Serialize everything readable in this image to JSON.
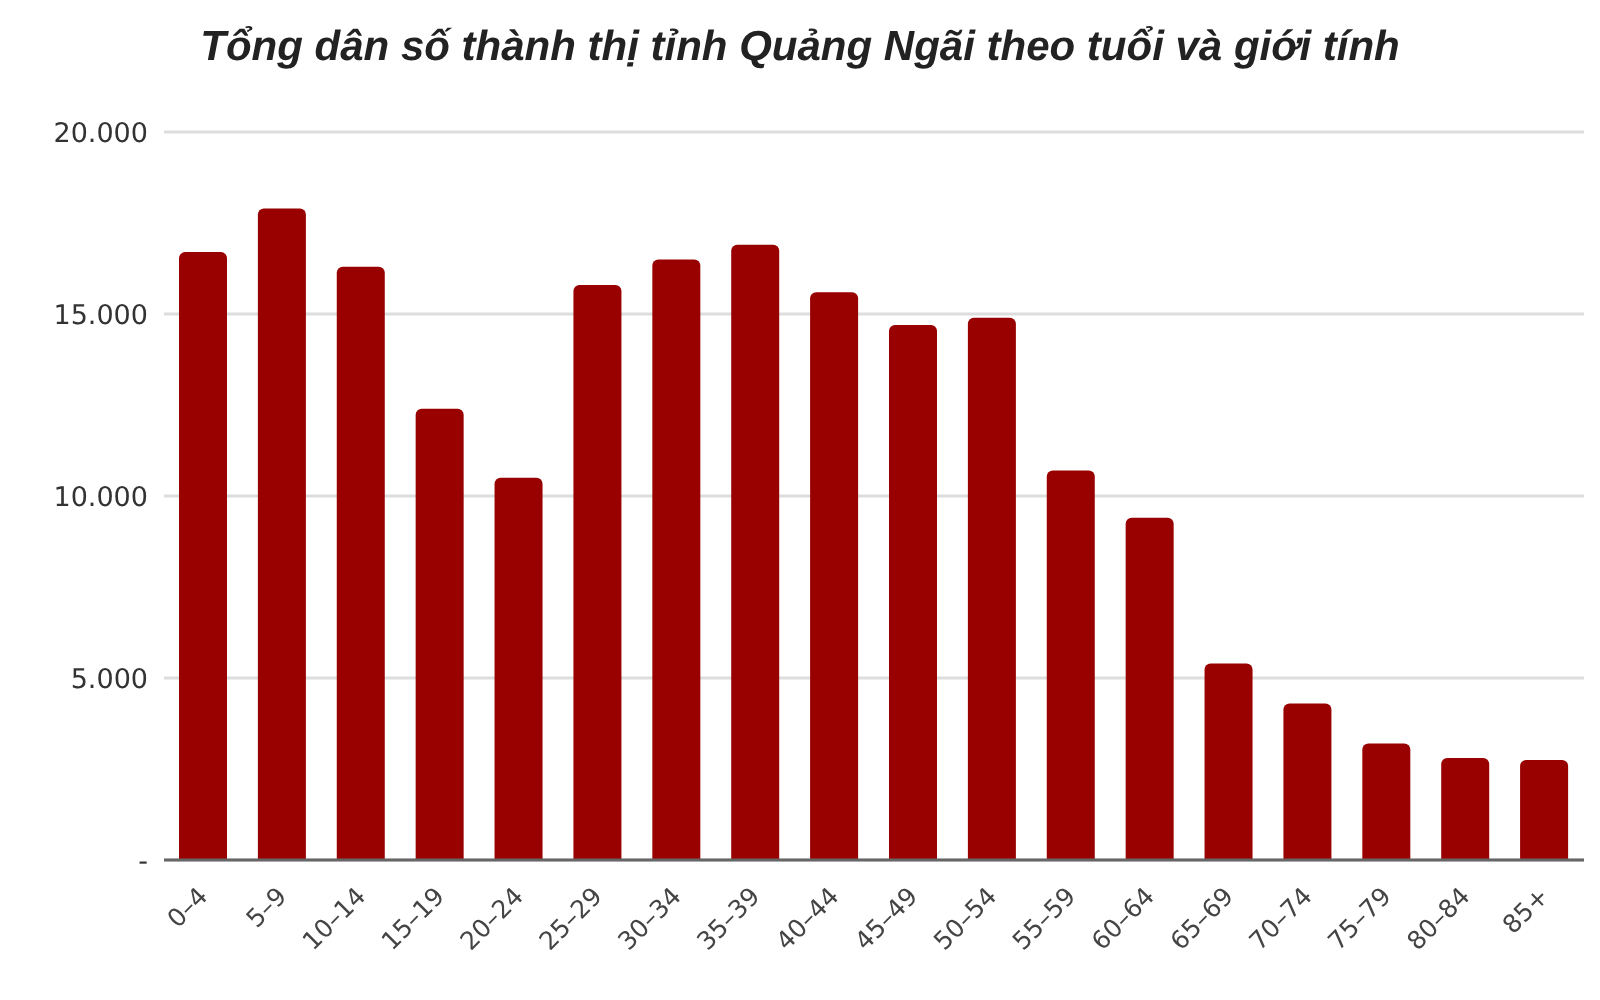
{
  "chart_data": {
    "type": "bar",
    "title": "Tổng dân số thành thị tỉnh Quảng Ngãi theo tuổi và giới tính",
    "categories": [
      "0–4",
      "5–9",
      "10–14",
      "15–19",
      "20–24",
      "25–29",
      "30–34",
      "35–39",
      "40–44",
      "45–49",
      "50–54",
      "55–59",
      "60–64",
      "65–69",
      "70–74",
      "75–79",
      "80–84",
      "85+"
    ],
    "values": [
      16700,
      17900,
      16300,
      12400,
      10500,
      15800,
      16500,
      16900,
      15600,
      14700,
      14900,
      10700,
      9400,
      5400,
      4300,
      3200,
      2800,
      2750
    ],
    "color": "#990000",
    "ylim": [
      0,
      20000
    ],
    "yticks": [
      {
        "value": 0,
        "label": "-"
      },
      {
        "value": 5000,
        "label": "5.000"
      },
      {
        "value": 10000,
        "label": "10.000"
      },
      {
        "value": 15000,
        "label": "15.000"
      },
      {
        "value": 20000,
        "label": "20.000"
      }
    ],
    "grid": "y"
  }
}
